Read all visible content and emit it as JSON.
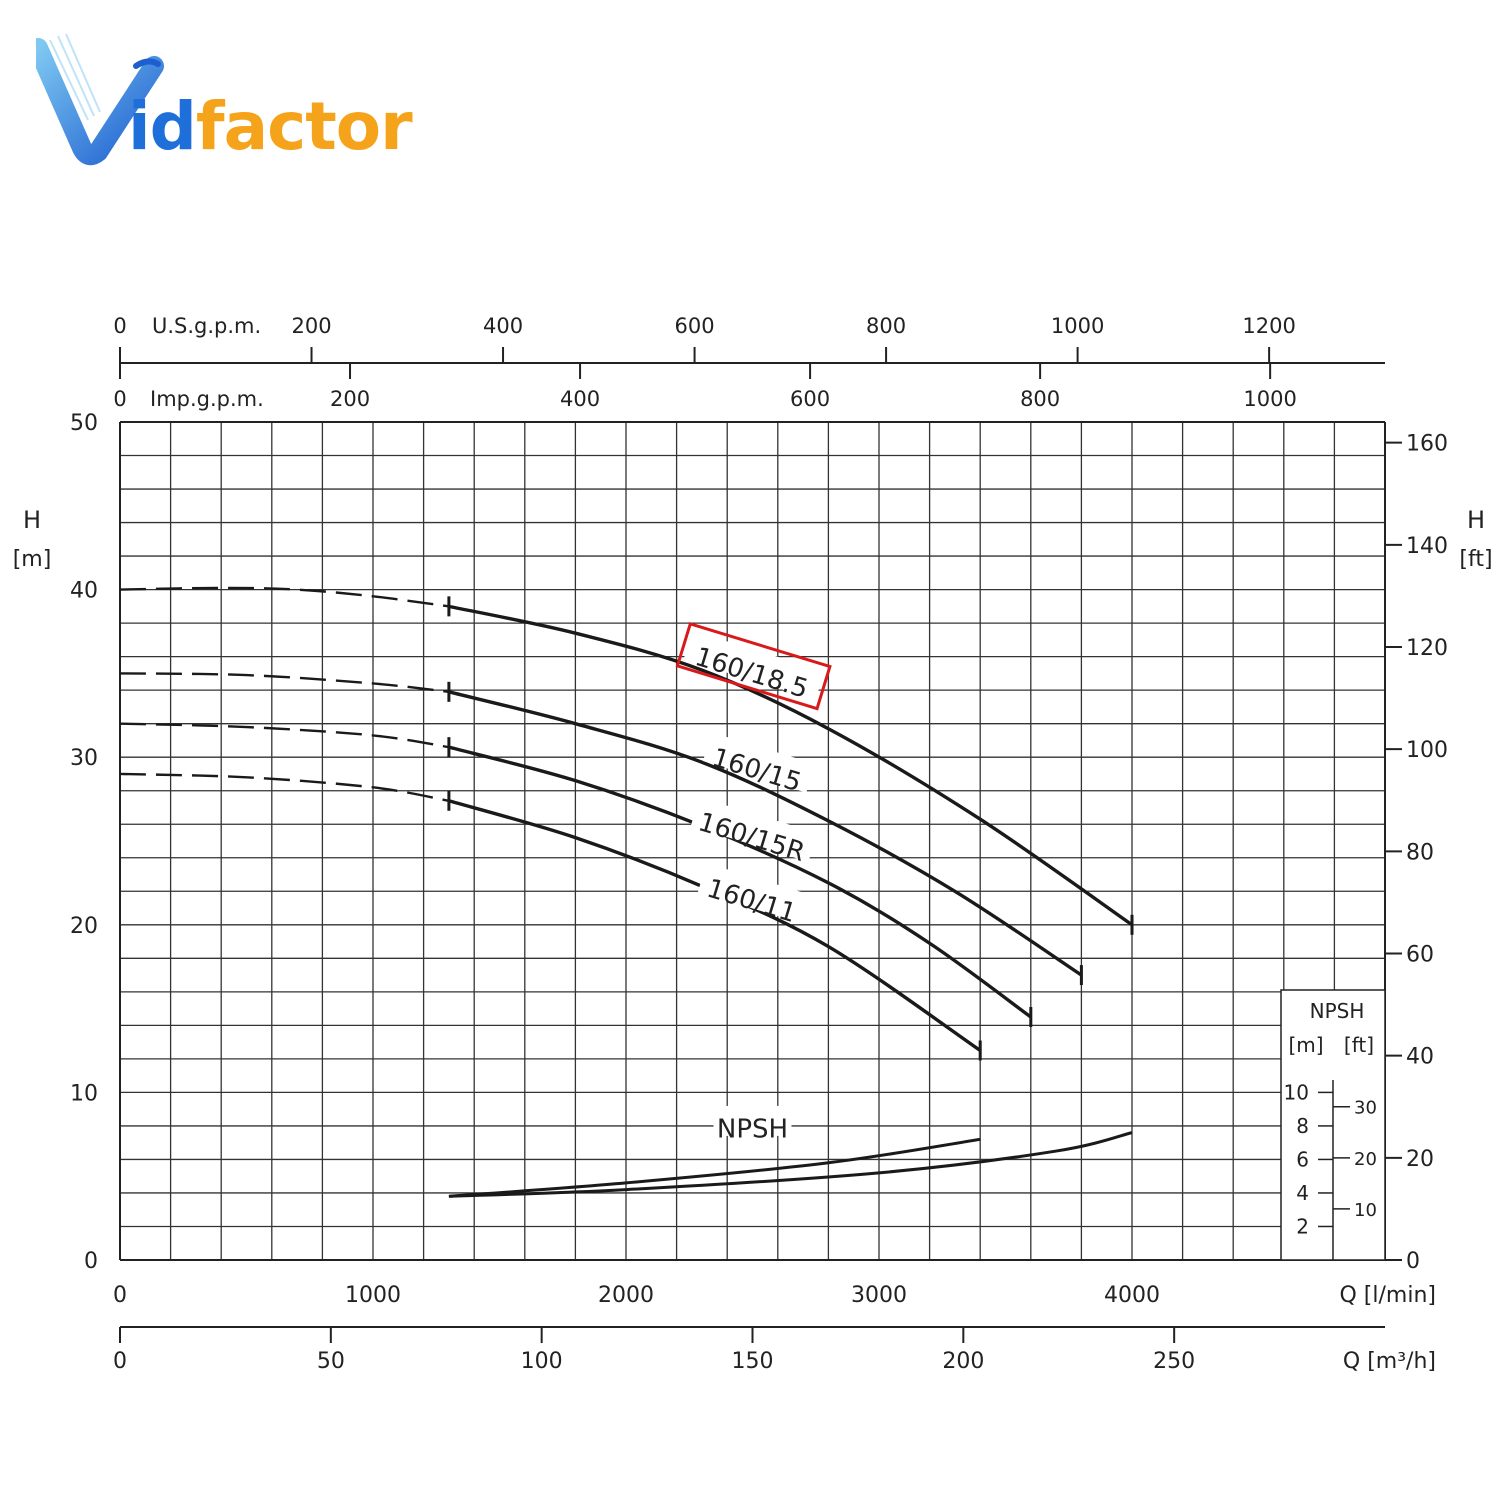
{
  "logo": {
    "text": "Vidfactor",
    "part_id": "id",
    "part_factor": "factor",
    "color_blue": "#1e6fd9",
    "color_orange": "#f5a31a"
  },
  "chart_data": {
    "type": "line",
    "title": "",
    "x": {
      "label": "Q [l/min]",
      "ticks": [
        "0",
        "1000",
        "2000",
        "3000",
        "4000"
      ],
      "range": [
        0,
        5000
      ]
    },
    "x2": {
      "label": "Q [m³/h]",
      "ticks": [
        "0",
        "50",
        "100",
        "150",
        "200",
        "250"
      ]
    },
    "top_usgpm": {
      "label": "U.S.g.p.m.",
      "ticks": [
        "0",
        "200",
        "400",
        "600",
        "800",
        "1000",
        "1200"
      ]
    },
    "top_impgpm": {
      "label": "Imp.g.p.m.",
      "ticks": [
        "0",
        "200",
        "400",
        "600",
        "800",
        "1000"
      ]
    },
    "y_left": {
      "label_top": "H",
      "label_unit": "[m]",
      "ticks": [
        "0",
        "10",
        "20",
        "30",
        "40",
        "50"
      ],
      "range": [
        0,
        50
      ]
    },
    "y_right": {
      "label_top": "H",
      "label_unit": "[ft]",
      "ticks": [
        "0",
        "20",
        "40",
        "60",
        "80",
        "100",
        "120",
        "140",
        "160"
      ]
    },
    "npsh_scale": {
      "title": "NPSH",
      "unit_m": "[m]",
      "unit_ft": "[ft]",
      "m_ticks": [
        "2",
        "4",
        "6",
        "8",
        "10"
      ],
      "ft_ticks": [
        "10",
        "20",
        "30"
      ]
    },
    "grid": true,
    "series": [
      {
        "name": "160/18.5",
        "highlighted": true,
        "dashed_x": [
          0,
          1300
        ],
        "x": [
          0,
          400,
          700,
          1000,
          1300,
          1800,
          2300,
          2800,
          3400,
          4000
        ],
        "y": [
          40,
          40.1,
          40,
          39.6,
          39,
          37.4,
          35.2,
          31.7,
          26.3,
          20
        ]
      },
      {
        "name": "160/15",
        "highlighted": false,
        "dashed_x": [
          0,
          1300
        ],
        "x": [
          0,
          500,
          1000,
          1300,
          1800,
          2300,
          2800,
          3300,
          3800
        ],
        "y": [
          35,
          34.9,
          34.4,
          33.9,
          32,
          29.7,
          26.2,
          22,
          17
        ]
      },
      {
        "name": "160/15R",
        "highlighted": false,
        "dashed_x": [
          0,
          1300
        ],
        "x": [
          0,
          500,
          1000,
          1300,
          1800,
          2300,
          2800,
          3200,
          3600
        ],
        "y": [
          32,
          31.8,
          31.3,
          30.6,
          28.6,
          25.9,
          22.5,
          18.9,
          14.5
        ]
      },
      {
        "name": "160/11",
        "highlighted": false,
        "dashed_x": [
          0,
          1300
        ],
        "x": [
          0,
          500,
          1000,
          1300,
          1800,
          2300,
          2800,
          3400
        ],
        "y": [
          29,
          28.8,
          28.2,
          27.4,
          25.2,
          22.3,
          18.7,
          12.5
        ]
      },
      {
        "name": "NPSH",
        "highlighted": false,
        "dashed_x": null,
        "x": [
          1300,
          2000,
          2800,
          3400
        ],
        "y": [
          3.8,
          4.6,
          5.8,
          7.2
        ]
      },
      {
        "name": "",
        "highlighted": false,
        "dashed_x": null,
        "x": [
          1300,
          2000,
          3000,
          3700,
          4000
        ],
        "y": [
          3.8,
          4.2,
          5.2,
          6.5,
          7.6
        ]
      }
    ]
  }
}
